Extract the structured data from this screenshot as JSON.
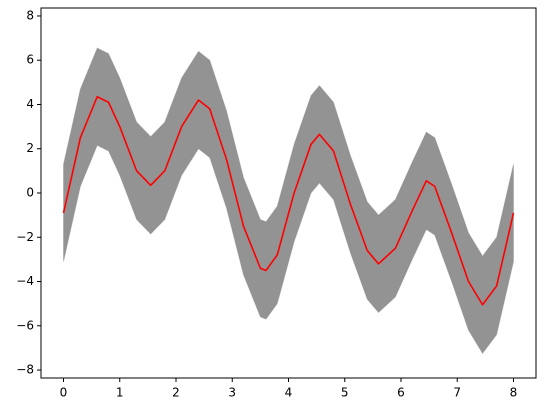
{
  "chart_data": {
    "type": "line",
    "x": [
      0,
      0.3,
      0.6,
      0.8,
      1.0,
      1.3,
      1.55,
      1.8,
      2.1,
      2.4,
      2.6,
      2.9,
      3.2,
      3.5,
      3.6,
      3.8,
      4.1,
      4.4,
      4.55,
      4.8,
      5.1,
      5.4,
      5.6,
      5.9,
      6.2,
      6.45,
      6.6,
      6.9,
      7.2,
      7.45,
      7.7,
      8.0
    ],
    "series": [
      {
        "kind": "band",
        "color": "#808080",
        "upper": [
          1.3,
          4.7,
          6.55,
          6.3,
          5.2,
          3.2,
          2.55,
          3.2,
          5.2,
          6.4,
          6.0,
          3.7,
          0.7,
          -1.2,
          -1.3,
          -0.6,
          2.2,
          4.4,
          4.85,
          4.1,
          1.7,
          -0.4,
          -1.0,
          -0.3,
          1.4,
          2.75,
          2.5,
          0.4,
          -1.8,
          -2.85,
          -2.0,
          1.3
        ],
        "lower": [
          -3.1,
          0.3,
          2.15,
          1.9,
          0.8,
          -1.2,
          -1.85,
          -1.2,
          0.8,
          2.0,
          1.6,
          -0.7,
          -3.7,
          -5.6,
          -5.7,
          -5.0,
          -2.2,
          0.0,
          0.45,
          -0.3,
          -2.7,
          -4.8,
          -5.4,
          -4.7,
          -3.0,
          -1.65,
          -1.9,
          -4.0,
          -6.2,
          -7.25,
          -6.4,
          -3.1
        ]
      },
      {
        "kind": "line",
        "color": "#ff0000",
        "values": [
          -0.9,
          2.5,
          4.35,
          4.1,
          3.0,
          1.0,
          0.35,
          1.0,
          3.0,
          4.2,
          3.8,
          1.5,
          -1.5,
          -3.4,
          -3.5,
          -2.8,
          0.0,
          2.2,
          2.65,
          1.9,
          -0.5,
          -2.6,
          -3.2,
          -2.5,
          -0.8,
          0.55,
          0.3,
          -1.8,
          -4.0,
          -5.05,
          -4.2,
          -0.9
        ]
      }
    ],
    "xlim": [
      -0.4,
      8.4
    ],
    "ylim": [
      -8.36,
      8.36
    ],
    "xticks": [
      0,
      1,
      2,
      3,
      4,
      5,
      6,
      7,
      8
    ],
    "yticks": [
      {
        "value": -8,
        "label": "−8"
      },
      {
        "value": -6,
        "label": "−6"
      },
      {
        "value": -4,
        "label": "−4"
      },
      {
        "value": -2,
        "label": "−2"
      },
      0,
      2,
      4,
      6,
      8
    ]
  }
}
